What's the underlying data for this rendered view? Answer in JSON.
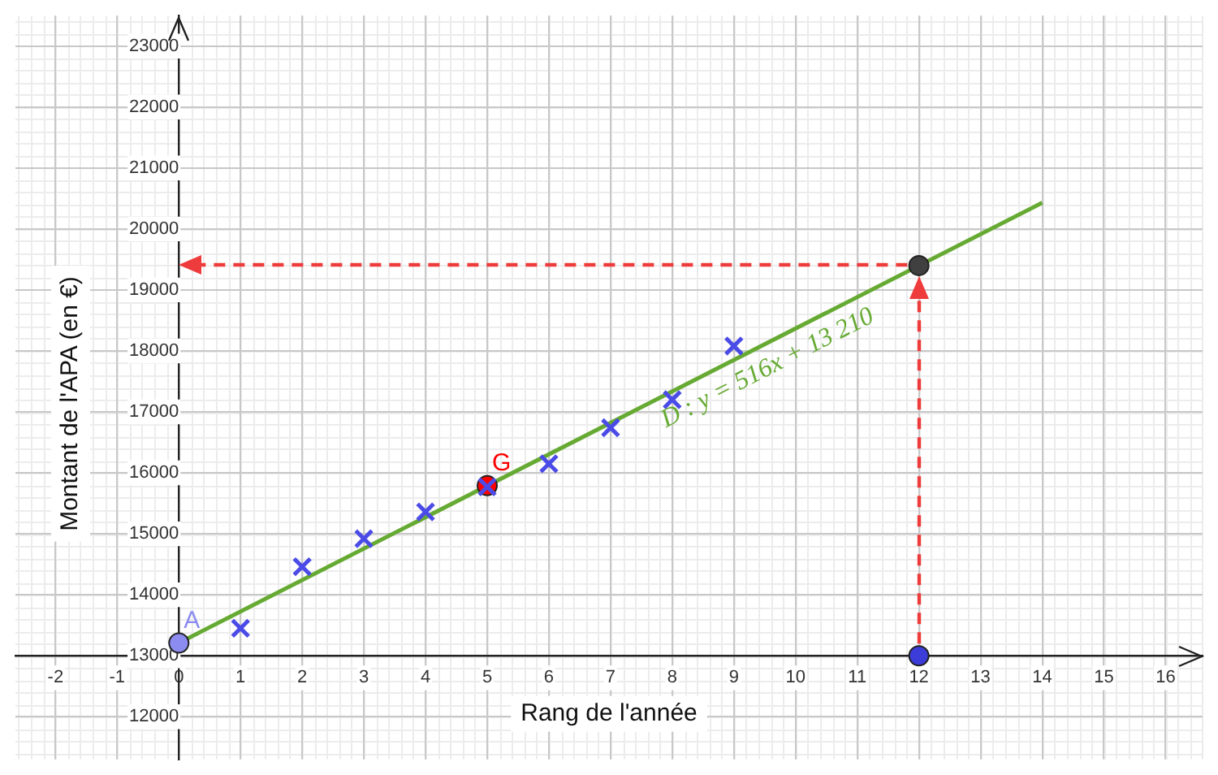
{
  "chart_data": {
    "type": "scatter",
    "xlabel": "Rang de l'année",
    "ylabel": "Montant de l'APA (en €)",
    "xlim": [
      -2.65,
      16.6
    ],
    "ylim": [
      11300,
      23500
    ],
    "xticks": [
      -2,
      -1,
      0,
      1,
      2,
      3,
      4,
      5,
      6,
      7,
      8,
      9,
      10,
      11,
      12,
      13,
      14,
      15,
      16
    ],
    "yticks": [
      12000,
      13000,
      14000,
      15000,
      16000,
      17000,
      18000,
      19000,
      20000,
      21000,
      22000,
      23000
    ],
    "grid": true,
    "legend": false,
    "series": [
      {
        "type": "line",
        "color": "#66aa33",
        "x": [
          0,
          14
        ],
        "values": [
          13210,
          20430
        ],
        "marker": "none"
      },
      {
        "color": "#4b4be8",
        "x": [
          1,
          2,
          3,
          4,
          5,
          6,
          7,
          8,
          9
        ],
        "values": [
          13450,
          14460,
          14920,
          15360,
          15770,
          16150,
          16740,
          17200,
          18080
        ],
        "marker": "cross"
      },
      {
        "color": "#8c8cf0",
        "x": [
          0
        ],
        "values": [
          13210
        ],
        "marker": "circle"
      },
      {
        "color": "#ff0000",
        "x": [
          5
        ],
        "values": [
          15790
        ],
        "marker": "circle"
      },
      {
        "color": "#404040",
        "x": [
          12
        ],
        "values": [
          19400
        ],
        "marker": "circle"
      },
      {
        "color": "#3c3cd8",
        "x": [
          12
        ],
        "values": [
          13000
        ],
        "marker": "circle"
      }
    ],
    "annotations": [
      {
        "text": "A",
        "x": 0,
        "y": 13210
      },
      {
        "text": "G",
        "x": 5,
        "y": 15790
      },
      "D : y = 516x + 13 210"
    ]
  }
}
